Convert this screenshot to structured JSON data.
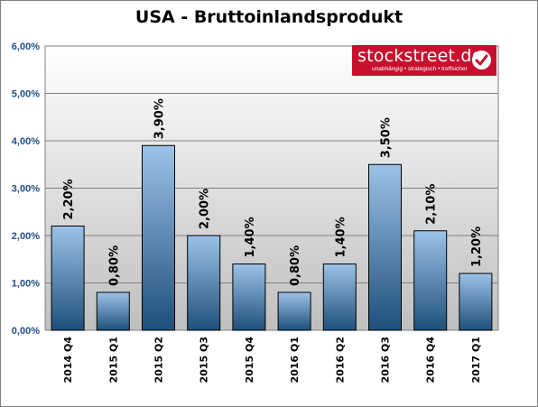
{
  "chart_data": {
    "type": "bar",
    "title": "USA - Bruttoinlandsprodukt",
    "categories": [
      "2014 Q4",
      "2015 Q1",
      "2015 Q2",
      "2015 Q3",
      "2015 Q4",
      "2016 Q1",
      "2016 Q2",
      "2016 Q3",
      "2016 Q4",
      "2017 Q1"
    ],
    "values": [
      2.2,
      0.8,
      3.9,
      2.0,
      1.4,
      0.8,
      1.4,
      3.5,
      2.1,
      1.2
    ],
    "value_labels": [
      "2,20%",
      "0,80%",
      "3,90%",
      "2,00%",
      "1,40%",
      "0,80%",
      "1,40%",
      "3,50%",
      "2,10%",
      "1,20%"
    ],
    "y_ticks": [
      0,
      1,
      2,
      3,
      4,
      5,
      6
    ],
    "y_tick_labels": [
      "0,00%",
      "1,00%",
      "2,00%",
      "3,00%",
      "4,00%",
      "5,00%",
      "6,00%"
    ],
    "ylim": [
      0,
      6
    ],
    "xlabel": "",
    "ylabel": "",
    "grid": true,
    "legend": "none",
    "colors": {
      "bar_top": "#9cc3e8",
      "bar_bottom": "#1e4f7a",
      "bar_border": "#000000",
      "plot_bg_top": "#ffffff",
      "plot_bg_bottom": "#bfbfbf",
      "tick_label": "#1f4e8c"
    }
  },
  "logo": {
    "text": "stockstreet.de",
    "tagline": "unabhängig • strategisch • treffsicher",
    "colors": {
      "background": "#c8102e",
      "check": "#c8102e"
    },
    "icon": "checkmark-icon"
  }
}
